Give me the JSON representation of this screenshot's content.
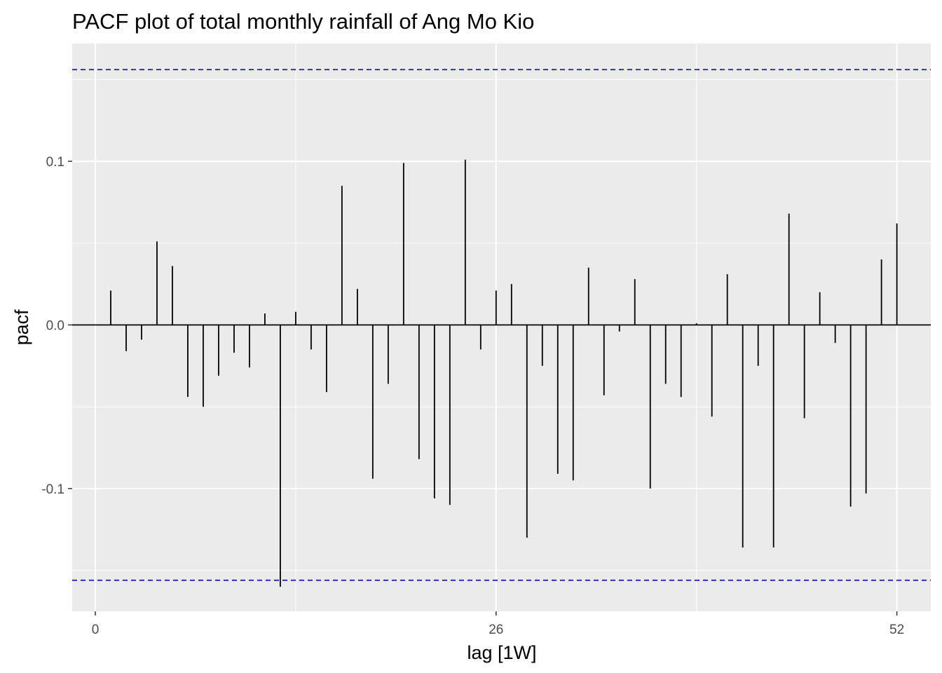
{
  "chart_data": {
    "type": "bar",
    "title": "PACF plot of total monthly rainfall of Ang Mo Kio",
    "xlabel": "lag [1W]",
    "ylabel": "pacf",
    "xlim": [
      -1.5,
      54.2
    ],
    "ylim": [
      -0.175,
      0.172
    ],
    "x_ticks": [
      0,
      26,
      52
    ],
    "x_tick_labels": [
      "0",
      "26",
      "52"
    ],
    "y_ticks": [
      -0.1,
      0.0,
      0.1
    ],
    "y_tick_labels": [
      "-0.1",
      "0.0",
      "0.1"
    ],
    "confidence_bounds": [
      0.156,
      -0.156
    ],
    "grid": true,
    "lags": [
      1,
      2,
      3,
      4,
      5,
      6,
      7,
      8,
      9,
      10,
      11,
      12,
      13,
      14,
      15,
      16,
      17,
      18,
      19,
      20,
      21,
      22,
      23,
      24,
      25,
      26,
      27,
      28,
      29,
      30,
      31,
      32,
      33,
      34,
      35,
      36,
      37,
      38,
      39,
      40,
      41,
      42,
      43,
      44,
      45,
      46,
      47,
      48,
      49,
      50,
      51,
      52
    ],
    "values": [
      0.021,
      -0.016,
      -0.009,
      0.051,
      0.036,
      -0.044,
      -0.05,
      -0.031,
      -0.017,
      -0.026,
      0.007,
      -0.16,
      0.008,
      -0.015,
      -0.041,
      0.085,
      0.022,
      -0.094,
      -0.036,
      0.099,
      -0.082,
      -0.106,
      -0.11,
      0.101,
      -0.015,
      0.021,
      0.025,
      -0.13,
      -0.025,
      -0.091,
      -0.095,
      0.035,
      -0.043,
      -0.004,
      0.028,
      -0.1,
      -0.036,
      -0.044,
      0.001,
      -0.056,
      0.031,
      -0.136,
      -0.025,
      -0.136,
      0.068,
      -0.057,
      0.02,
      -0.011,
      -0.111,
      -0.103,
      0.04,
      0.062
    ],
    "colors": {
      "panel_background": "#ebebeb",
      "grid": "#ffffff",
      "bars": "#000000",
      "bounds": "#0000cc",
      "tick_text": "#4d4d4d"
    }
  }
}
